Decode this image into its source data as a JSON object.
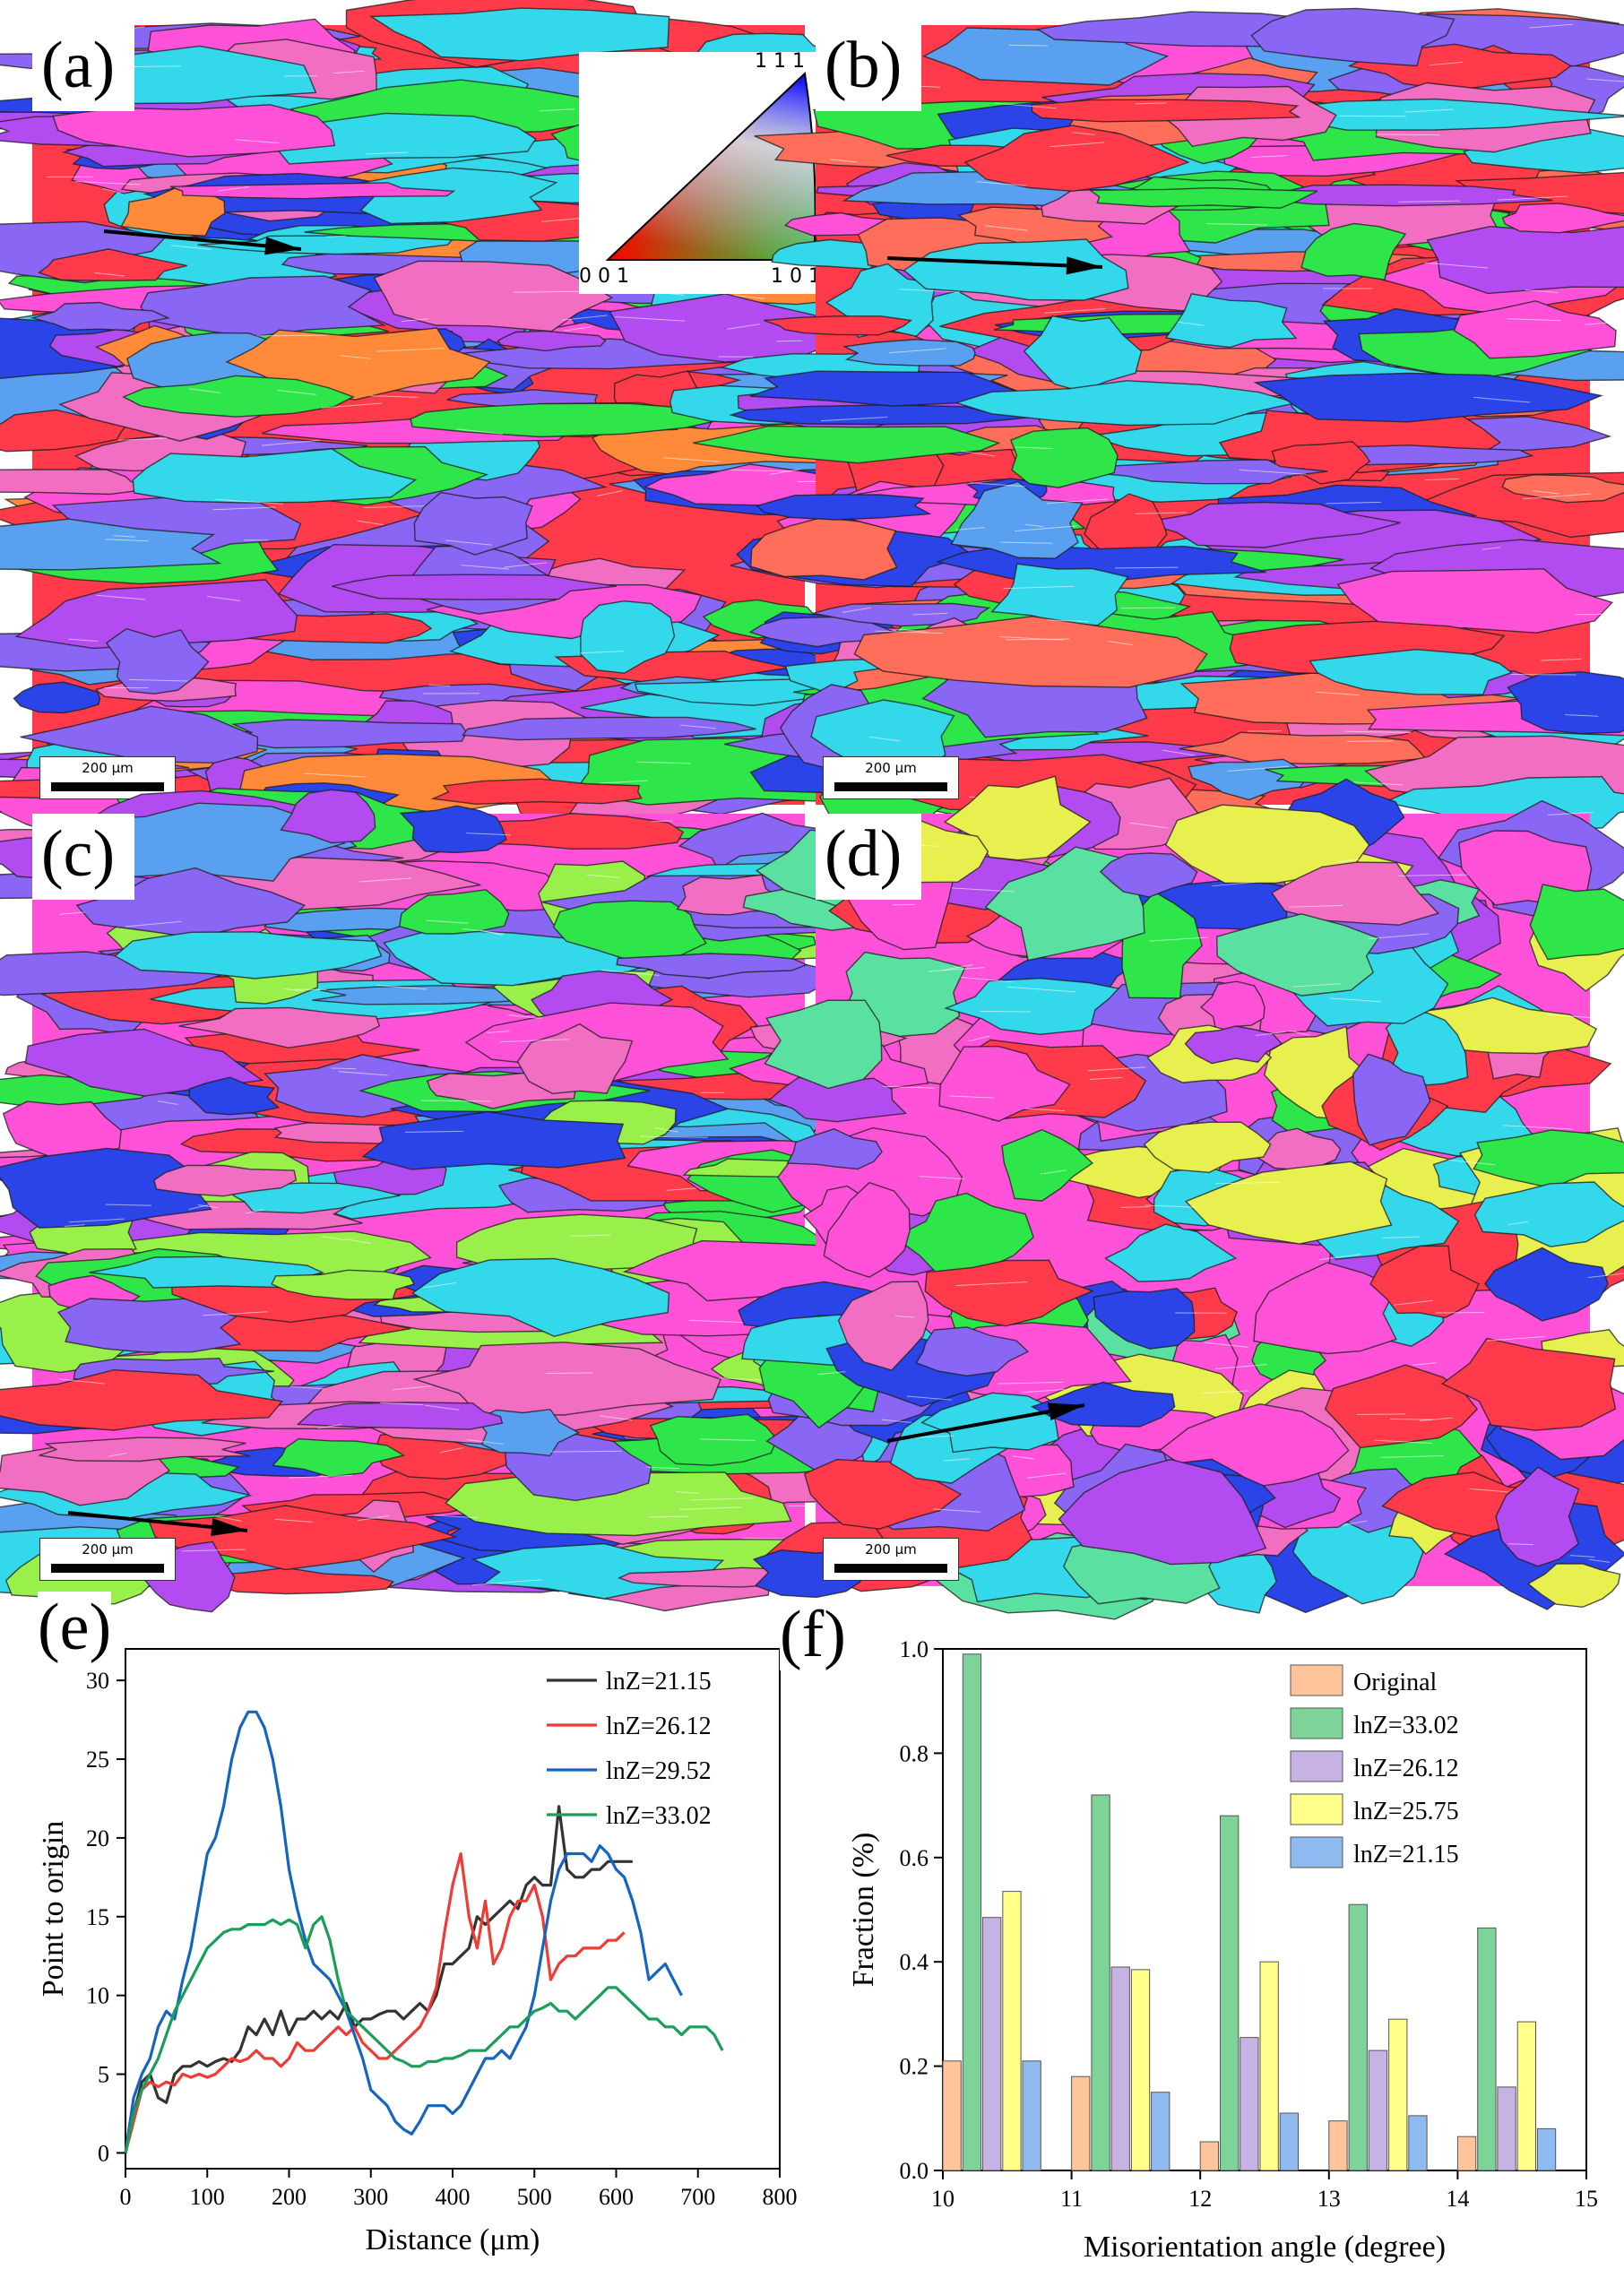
{
  "panels": [
    {
      "label": "(a)",
      "scale_bar": "200 μm",
      "palette": [
        "#ff3a4a",
        "#2a44e8",
        "#b24cf0",
        "#ff52d8",
        "#2ee64a",
        "#33d8ea",
        "#8a66f4",
        "#f26ec2",
        "#ff8a3a",
        "#5aa0f0"
      ]
    },
    {
      "label": "(b)",
      "scale_bar": "200 μm",
      "palette": [
        "#ff3a4a",
        "#ff52d8",
        "#b24cf0",
        "#2a44e8",
        "#33d8ea",
        "#ff6e5a",
        "#8a66f4",
        "#f26ec2",
        "#5aa0f0",
        "#2ee64a"
      ]
    },
    {
      "label": "(c)",
      "scale_bar": "200 μm",
      "palette": [
        "#ff52d8",
        "#2a44e8",
        "#2ee64a",
        "#ff3a4a",
        "#33d8ea",
        "#b24cf0",
        "#8a66f4",
        "#f26ec2",
        "#9af04a",
        "#5aa0f0"
      ]
    },
    {
      "label": "(d)",
      "scale_bar": "200 μm",
      "palette": [
        "#ff52d8",
        "#2ee64a",
        "#33d8ea",
        "#2a44e8",
        "#ff3a4a",
        "#e8f050",
        "#b24cf0",
        "#f26ec2",
        "#8a66f4",
        "#5ae0a0"
      ]
    }
  ],
  "ipf_legend": {
    "top": "1 1 1",
    "left": "0 0 1",
    "right": "1 0 1"
  },
  "chart_data": [
    {
      "type": "line",
      "panel_label": "(e)",
      "xlabel": "Distance (μm)",
      "ylabel": "Point to origin",
      "xlim": [
        0,
        800
      ],
      "ylim": [
        -1,
        32
      ],
      "xticks": [
        "0",
        "100",
        "200",
        "300",
        "400",
        "500",
        "600",
        "700",
        "800"
      ],
      "yticks": [
        "0",
        "5",
        "10",
        "15",
        "20",
        "25",
        "30"
      ],
      "series": [
        {
          "name": "lnZ=21.15",
          "color": "#333333",
          "x": [
            0,
            10,
            20,
            30,
            40,
            50,
            60,
            70,
            80,
            90,
            100,
            110,
            120,
            130,
            140,
            150,
            160,
            170,
            180,
            190,
            200,
            210,
            220,
            230,
            240,
            250,
            260,
            270,
            280,
            290,
            300,
            310,
            320,
            330,
            340,
            350,
            360,
            370,
            380,
            390,
            400,
            410,
            420,
            430,
            440,
            450,
            460,
            470,
            480,
            490,
            500,
            510,
            520,
            530,
            540,
            550,
            560,
            570,
            580,
            590,
            600,
            610,
            620
          ],
          "y": [
            0,
            2.5,
            4.5,
            5,
            3.5,
            3.2,
            5,
            5.5,
            5.5,
            5.8,
            5.5,
            5.8,
            6,
            5.8,
            6.5,
            8,
            7.5,
            8.5,
            7.5,
            9,
            7.5,
            8.5,
            8.5,
            9,
            8.5,
            9,
            8.5,
            9.5,
            8,
            8.5,
            8.5,
            8.8,
            9,
            9,
            8.5,
            9,
            9.5,
            9,
            10,
            12,
            12,
            12.5,
            13,
            15,
            14.5,
            15,
            15.5,
            16,
            15.5,
            17,
            17.5,
            17,
            17,
            22,
            18,
            17.5,
            17.5,
            18,
            18,
            18.5,
            18.5,
            18.5,
            18.5
          ]
        },
        {
          "name": "lnZ=26.12",
          "color": "#ee3b33",
          "x": [
            0,
            10,
            20,
            30,
            40,
            50,
            60,
            70,
            80,
            90,
            100,
            110,
            120,
            130,
            140,
            150,
            160,
            170,
            180,
            190,
            200,
            210,
            220,
            230,
            240,
            250,
            260,
            270,
            280,
            290,
            300,
            310,
            320,
            330,
            340,
            350,
            360,
            370,
            380,
            390,
            400,
            410,
            420,
            430,
            440,
            450,
            460,
            470,
            480,
            490,
            500,
            510,
            520,
            530,
            540,
            550,
            560,
            570,
            580,
            590,
            600,
            610
          ],
          "y": [
            0,
            2,
            4,
            4.5,
            4.2,
            4.5,
            4.3,
            5,
            4.8,
            5,
            4.8,
            5,
            5.5,
            6,
            5.8,
            6,
            6.5,
            6,
            6,
            5.5,
            6,
            7,
            6.5,
            6.5,
            7,
            7.5,
            8,
            7.5,
            8,
            7,
            6.5,
            6,
            6,
            6.5,
            7,
            7.5,
            8,
            9,
            10.5,
            14,
            17,
            19,
            15,
            13,
            16,
            12,
            13,
            15,
            16,
            16,
            17,
            15,
            11,
            12,
            12.5,
            12.5,
            13,
            13,
            13,
            13.5,
            13.5,
            14
          ]
        },
        {
          "name": "lnZ=29.52",
          "color": "#1565c0",
          "x": [
            0,
            10,
            20,
            30,
            40,
            50,
            60,
            70,
            80,
            90,
            100,
            110,
            120,
            130,
            140,
            150,
            160,
            170,
            180,
            190,
            200,
            210,
            220,
            230,
            240,
            250,
            260,
            270,
            280,
            290,
            300,
            310,
            320,
            330,
            340,
            350,
            360,
            370,
            380,
            390,
            400,
            410,
            420,
            430,
            440,
            450,
            460,
            470,
            480,
            490,
            500,
            510,
            520,
            530,
            540,
            550,
            560,
            570,
            580,
            590,
            600,
            610,
            620,
            630,
            640,
            650,
            660,
            670,
            680
          ],
          "y": [
            0,
            3.5,
            5,
            6,
            8,
            9,
            8.5,
            11,
            13,
            16,
            19,
            20,
            22,
            25,
            27,
            28,
            28,
            27,
            25,
            22,
            18,
            15.5,
            13.5,
            12,
            11.5,
            11,
            10,
            9,
            7.5,
            6,
            4,
            3.5,
            3,
            2,
            1.5,
            1.2,
            2,
            3,
            3,
            3,
            2.5,
            3,
            4,
            5,
            6,
            6,
            6.5,
            6,
            7,
            8,
            10,
            13,
            16,
            18,
            19,
            19,
            19,
            18.5,
            19.5,
            19,
            18,
            17.5,
            16,
            14,
            11,
            11.5,
            12,
            11,
            10
          ]
        },
        {
          "name": "lnZ=33.02",
          "color": "#1a9e5a",
          "x": [
            0,
            10,
            20,
            30,
            40,
            50,
            60,
            70,
            80,
            90,
            100,
            110,
            120,
            130,
            140,
            150,
            160,
            170,
            180,
            190,
            200,
            210,
            220,
            230,
            240,
            250,
            260,
            270,
            280,
            290,
            300,
            310,
            320,
            330,
            340,
            350,
            360,
            370,
            380,
            390,
            400,
            410,
            420,
            430,
            440,
            450,
            460,
            470,
            480,
            490,
            500,
            510,
            520,
            530,
            540,
            550,
            560,
            570,
            580,
            590,
            600,
            610,
            620,
            630,
            640,
            650,
            660,
            670,
            680,
            690,
            700,
            710,
            720,
            730
          ],
          "y": [
            0,
            2.5,
            4,
            5,
            6,
            7.5,
            9,
            10,
            11,
            12,
            13,
            13.5,
            14,
            14.2,
            14.2,
            14.5,
            14.5,
            14.5,
            14.8,
            14.5,
            14.8,
            14.5,
            13,
            14.5,
            15,
            13.5,
            11,
            9,
            8.5,
            8,
            7.5,
            7,
            6.5,
            6,
            5.8,
            5.5,
            5.5,
            5.8,
            5.8,
            6,
            6,
            6.2,
            6.5,
            6.5,
            6.5,
            7,
            7.5,
            8,
            8,
            8.5,
            9,
            9.2,
            9.5,
            9,
            9,
            8.5,
            9,
            9.5,
            10,
            10.5,
            10.5,
            10,
            9.5,
            9,
            8.5,
            8.5,
            8,
            8,
            7.5,
            8,
            8,
            8,
            7.5,
            6.5
          ]
        }
      ]
    },
    {
      "type": "bar",
      "panel_label": "(f)",
      "xlabel": "Misorientation angle (degree)",
      "ylabel": "Fraction (%)",
      "xlim": [
        10,
        15
      ],
      "ylim": [
        0,
        1.0
      ],
      "xticks": [
        "10",
        "11",
        "12",
        "13",
        "14",
        "15"
      ],
      "yticks": [
        "0.0",
        "0.2",
        "0.4",
        "0.6",
        "0.8",
        "1.0"
      ],
      "categories": [
        "10-11",
        "11-12",
        "12-13",
        "13-14",
        "14-15"
      ],
      "series": [
        {
          "name": "Original",
          "color": "#ffc49a",
          "values": [
            0.21,
            0.18,
            0.055,
            0.095,
            0.065
          ]
        },
        {
          "name": "lnZ=33.02",
          "color": "#7dd398",
          "values": [
            0.99,
            0.72,
            0.68,
            0.51,
            0.465
          ]
        },
        {
          "name": "lnZ=26.12",
          "color": "#c7b3e3",
          "values": [
            0.485,
            0.39,
            0.255,
            0.23,
            0.16
          ]
        },
        {
          "name": "lnZ=25.75",
          "color": "#ffff8a",
          "values": [
            0.535,
            0.385,
            0.4,
            0.29,
            0.285
          ]
        },
        {
          "name": "lnZ=21.15",
          "color": "#8fbaf0",
          "values": [
            0.21,
            0.15,
            0.11,
            0.105,
            0.08
          ]
        }
      ]
    }
  ]
}
